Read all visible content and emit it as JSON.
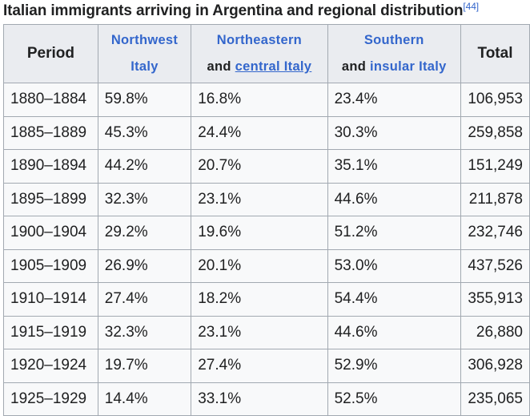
{
  "caption": {
    "text": "Italian immigrants arriving in Argentina and regional distribution",
    "ref": "[44]"
  },
  "headers": {
    "period": "Period",
    "northwest": {
      "line1": "Northwest",
      "line2": "Italy"
    },
    "northeast": {
      "line1": "Northeastern",
      "line2_prefix": "and ",
      "line2_link": "central Italy"
    },
    "south": {
      "line1": "Southern",
      "line2_prefix": "and ",
      "line2_link": "insular Italy"
    },
    "total": "Total"
  },
  "rows": [
    {
      "period": "1880–1884",
      "northwest": "59.8%",
      "northeast": "16.8%",
      "south": "23.4%",
      "total": "106,953"
    },
    {
      "period": "1885–1889",
      "northwest": "45.3%",
      "northeast": "24.4%",
      "south": "30.3%",
      "total": "259,858"
    },
    {
      "period": "1890–1894",
      "northwest": "44.2%",
      "northeast": "20.7%",
      "south": "35.1%",
      "total": "151,249"
    },
    {
      "period": "1895–1899",
      "northwest": "32.3%",
      "northeast": "23.1%",
      "south": "44.6%",
      "total": "211,878"
    },
    {
      "period": "1900–1904",
      "northwest": "29.2%",
      "northeast": "19.6%",
      "south": "51.2%",
      "total": "232,746"
    },
    {
      "period": "1905–1909",
      "northwest": "26.9%",
      "northeast": "20.1%",
      "south": "53.0%",
      "total": "437,526"
    },
    {
      "period": "1910–1914",
      "northwest": "27.4%",
      "northeast": "18.2%",
      "south": "54.4%",
      "total": "355,913"
    },
    {
      "period": "1915–1919",
      "northwest": "32.3%",
      "northeast": "23.1%",
      "south": "44.6%",
      "total": "26,880"
    },
    {
      "period": "1920–1924",
      "northwest": "19.7%",
      "northeast": "27.4%",
      "south": "52.9%",
      "total": "306,928"
    },
    {
      "period": "1925–1929",
      "northwest": "14.4%",
      "northeast": "33.1%",
      "south": "52.5%",
      "total": "235,065"
    }
  ]
}
